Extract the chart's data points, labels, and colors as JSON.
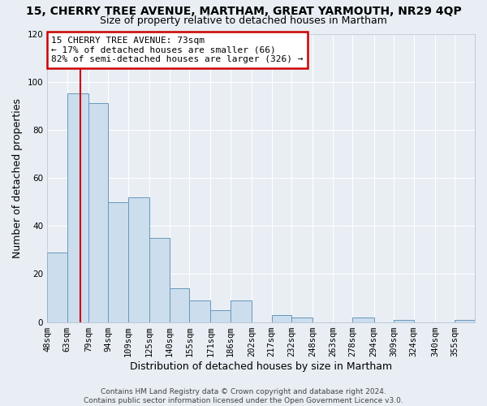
{
  "title": "15, CHERRY TREE AVENUE, MARTHAM, GREAT YARMOUTH, NR29 4QP",
  "subtitle": "Size of property relative to detached houses in Martham",
  "xlabel": "Distribution of detached houses by size in Martham",
  "ylabel": "Number of detached properties",
  "bin_labels": [
    "48sqm",
    "63sqm",
    "79sqm",
    "94sqm",
    "109sqm",
    "125sqm",
    "140sqm",
    "155sqm",
    "171sqm",
    "186sqm",
    "202sqm",
    "217sqm",
    "232sqm",
    "248sqm",
    "263sqm",
    "278sqm",
    "294sqm",
    "309sqm",
    "324sqm",
    "340sqm",
    "355sqm"
  ],
  "bin_edges": [
    48,
    63,
    79,
    94,
    109,
    125,
    140,
    155,
    171,
    186,
    202,
    217,
    232,
    248,
    263,
    278,
    294,
    309,
    324,
    340,
    355,
    370
  ],
  "bar_heights": [
    29,
    95,
    91,
    50,
    52,
    35,
    14,
    9,
    5,
    9,
    0,
    3,
    2,
    0,
    0,
    2,
    0,
    1,
    0,
    0,
    1
  ],
  "bar_color": "#ccdded",
  "bar_edge_color": "#6699bb",
  "vline_x": 73,
  "vline_color": "#cc0000",
  "ylim": [
    0,
    120
  ],
  "yticks": [
    0,
    20,
    40,
    60,
    80,
    100,
    120
  ],
  "annotation_box_text": "15 CHERRY TREE AVENUE: 73sqm\n← 17% of detached houses are smaller (66)\n82% of semi-detached houses are larger (326) →",
  "annotation_box_color": "#cc0000",
  "footer_line1": "Contains HM Land Registry data © Crown copyright and database right 2024.",
  "footer_line2": "Contains public sector information licensed under the Open Government Licence v3.0.",
  "background_color": "#e8eef4",
  "plot_bg_color": "#e8eef4",
  "grid_color": "#ffffff",
  "title_fontsize": 10,
  "subtitle_fontsize": 9,
  "axis_label_fontsize": 9,
  "tick_fontsize": 7.5,
  "footer_fontsize": 6.5
}
